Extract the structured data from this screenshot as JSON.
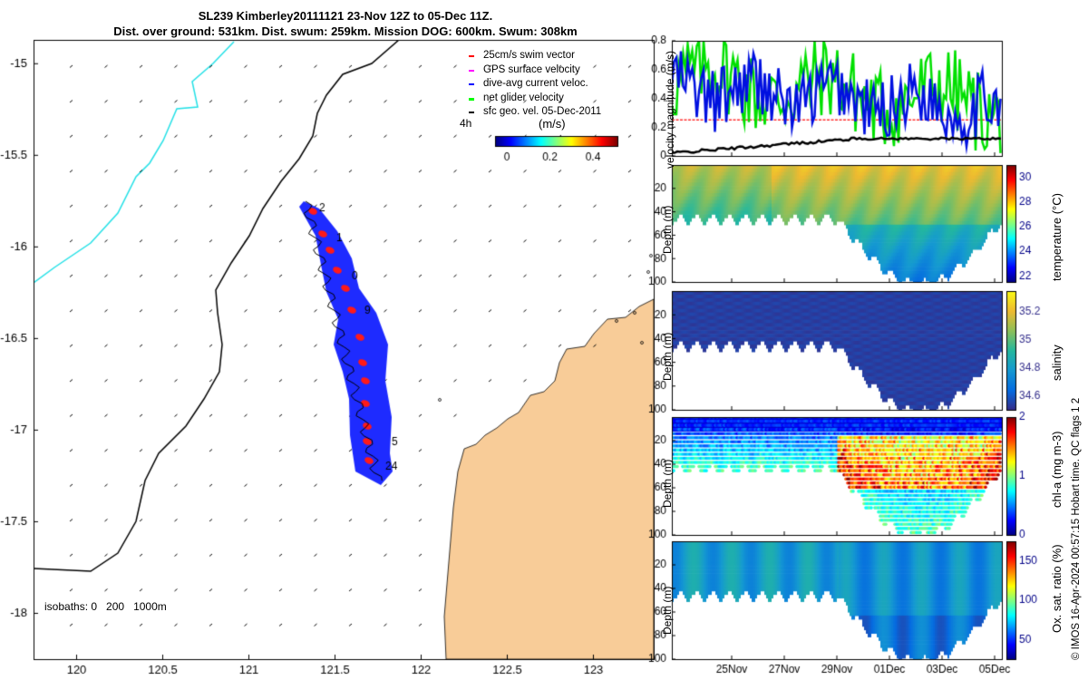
{
  "title_line1": "SL239 Kimberley20111121 23-Nov 12Z to 05-Dec 11Z.",
  "title_line2": "Dist. over ground: 531km. Dist. swum: 259km. Mission DOG: 600km. Swum: 308km",
  "map": {
    "x_ticks": [
      "120",
      "120.5",
      "121",
      "121.5",
      "122",
      "122.5",
      "123"
    ],
    "y_ticks": [
      "-15",
      "-15.5",
      "-16",
      "-16.5",
      "-17",
      "-17.5",
      "-18"
    ],
    "x_range": [
      119.75,
      123.35
    ],
    "y_range": [
      -18.25,
      -14.87
    ],
    "isobaths_label": "isobaths: 0   200   1000m",
    "legend": [
      {
        "label": "25cm/s swim vector",
        "color": "#ff0000"
      },
      {
        "label": "GPS surface velocity",
        "color": "#ff00ff"
      },
      {
        "label": "dive-avg current veloc.",
        "color": "#0000ff"
      },
      {
        "label": "net glider velocity",
        "color": "#00ff00"
      },
      {
        "label": "sfc geo. vel. 05-Dec-2011",
        "color": "#000000"
      }
    ],
    "time_label": "4h",
    "colorbar_label": "(m/s)",
    "colorbar_ticks": [
      "0",
      "0.2",
      "0.4"
    ],
    "day_labels": [
      "2",
      "1",
      "0",
      "9",
      "5",
      "24"
    ]
  },
  "chart_data": [
    {
      "type": "line",
      "title": "",
      "ylabel": "velocity magnitude (m/s)",
      "ylim": [
        0,
        0.8
      ],
      "y_ticks": [
        "0",
        "0.2",
        "0.4",
        "0.6",
        "0.8"
      ],
      "series": [
        {
          "name": "net glider velocity",
          "color": "#00ff00"
        },
        {
          "name": "dive-avg current veloc.",
          "color": "#0000ff"
        },
        {
          "name": "sfc geo. vel.",
          "color": "#000000"
        },
        {
          "name": "25cm/s swim vector",
          "color": "#ff0000",
          "value": 0.25
        }
      ]
    },
    {
      "type": "heatmap",
      "ylabel": "Depth (m)",
      "clabel": "temperature (°C)",
      "y_ticks": [
        "20",
        "40",
        "60",
        "80",
        "100"
      ],
      "c_ticks": [
        "22",
        "24",
        "26",
        "28",
        "30"
      ],
      "crange": [
        21.5,
        31
      ]
    },
    {
      "type": "heatmap",
      "ylabel": "Depth (m)",
      "clabel": "salinity",
      "y_ticks": [
        "20",
        "40",
        "60",
        "80",
        "100"
      ],
      "c_ticks": [
        "34.6",
        "34.8",
        "35",
        "35.2"
      ],
      "crange": [
        34.5,
        35.35
      ]
    },
    {
      "type": "heatmap",
      "ylabel": "Depth (m)",
      "clabel": "chl-a (mg m-3)",
      "y_ticks": [
        "20",
        "40",
        "60",
        "80",
        "100"
      ],
      "c_ticks": [
        "0",
        "1",
        "2"
      ],
      "crange": [
        0,
        2
      ]
    },
    {
      "type": "heatmap",
      "ylabel": "Depth (m)",
      "clabel": "Ox. sat. ratio (%)",
      "y_ticks": [
        "20",
        "40",
        "60",
        "80",
        "100"
      ],
      "c_ticks": [
        "50",
        "100",
        "150"
      ],
      "crange": [
        25,
        175
      ]
    }
  ],
  "x_dates": [
    "25Nov",
    "27Nov",
    "29Nov",
    "01Dec",
    "03Dec",
    "05Dec"
  ],
  "footer": "© IMOS 16-Apr-2024 00:57:15 Hobart time. QC flags 1  2"
}
